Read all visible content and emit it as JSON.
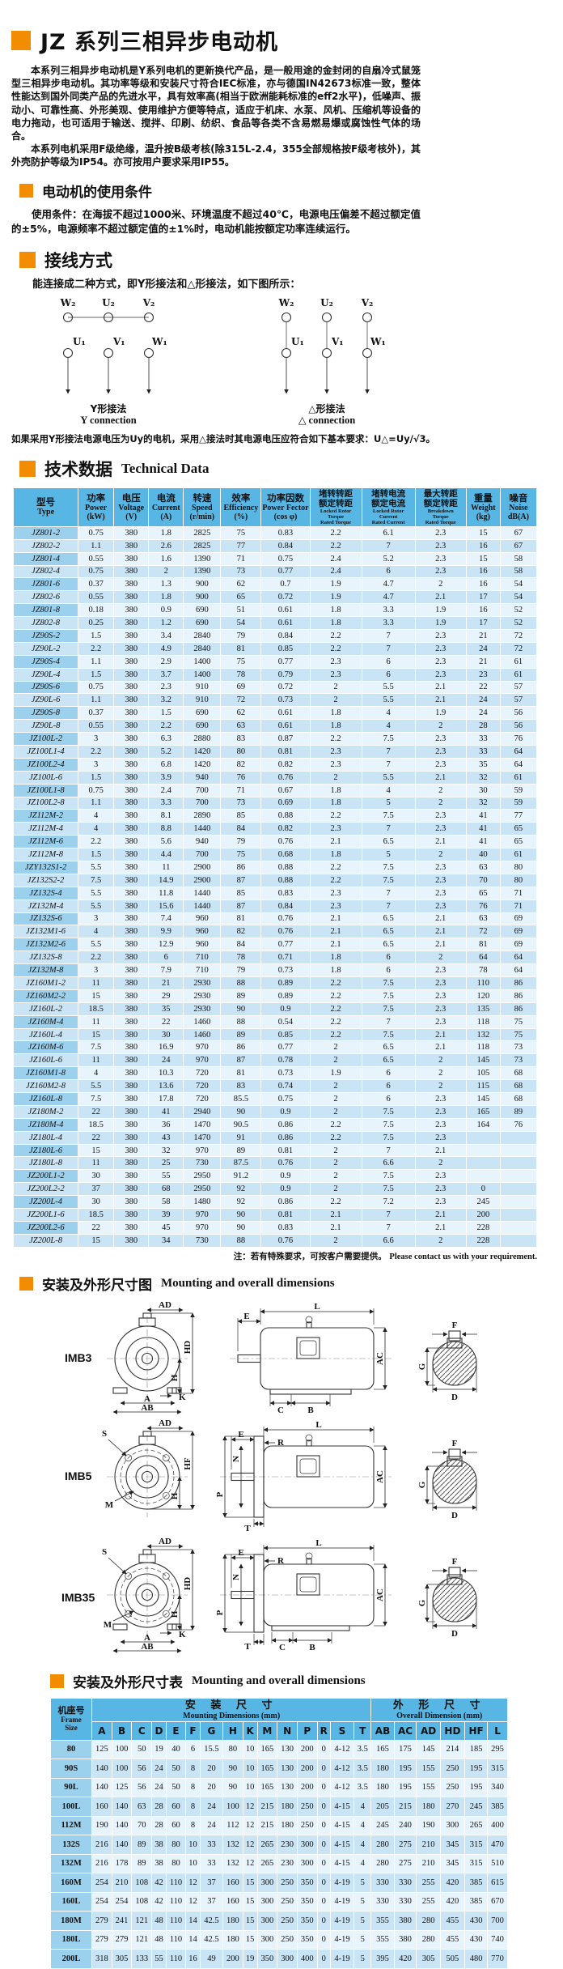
{
  "header": {
    "title": "JZ 系列三相异步电动机"
  },
  "intro": {
    "p1": "本系列三相异步电动机是Y系列电机的更新换代产品，是一般用途的金封闭的自扇冷式鼠笼型三相异步电动机。其功率等级和安装尺寸符合IEC标准，亦与德国IN42673标准一致，整体性能达到国外同类产品的先进水平，具有效率高(相当于欧洲能耗标准的eff2水平)，低噪声、振动小、可靠性高、外形美观、使用维护方便等特点，适应于机床、水泵、风机、压缩机等设备的电力拖动，也可适用于输送、搅拌、印刷、纺织、食品等各类不含易燃易爆或腐蚀性气体的场合。",
    "p2": "本系列电机采用F级绝缘，温升按B级考核(除315L-2.4，355全部规格按F级考核外)，其外壳防护等级为IP54。亦可按用户要求采用IP55。"
  },
  "usage": {
    "heading": "电动机的使用条件",
    "body": "使用条件：在海拔不超过1000米、环境温度不超过40℃，电源电压偏差不超过额定值的±5%，电源频率不超过额定值的±1%时，电动机能按额定功率连续运行。"
  },
  "wiring": {
    "heading": "接线方式",
    "lead": "能连接成二种方式，即Y形接法和△形接法，如下图所示：",
    "terminals_top": [
      "W₂",
      "U₂",
      "V₂"
    ],
    "terminals_bottom": [
      "U₁",
      "V₁",
      "W₁"
    ],
    "y_caption_cn": "Y形接法",
    "y_caption_en": "Y connection",
    "delta_caption_cn": "△形接法",
    "delta_caption_en": "△ connection",
    "note": "如果采用Y形接法电源电压为Uy的电机，采用△接法时其电源电压应符合如下基本要求：U△=Uy/√3。"
  },
  "tech": {
    "heading_cn": "技术数据",
    "heading_en": "Technical Data",
    "note_cn": "注：若有特殊要求，可按客户需要提供。",
    "note_en": "Please contact us with your requirement."
  },
  "tech_table": {
    "headers": {
      "type_cn": "型号",
      "type_en": "Type",
      "power_cn": "功率",
      "power_en": "Power",
      "power_unit": "(kW)",
      "voltage_cn": "电压",
      "voltage_en": "Voltage",
      "voltage_unit": "(V)",
      "current_cn": "电流",
      "current_en": "Current",
      "current_unit": "(A)",
      "speed_cn": "转速",
      "speed_en": "Speed",
      "speed_unit": "(r/min)",
      "eff_cn": "效率",
      "eff_en": "Efficiency",
      "eff_unit": "(%)",
      "pf_cn": "功率因数",
      "pf_en": "Power Fector",
      "pf_unit": "(cos φ)",
      "lrt_cn1": "堵转转距",
      "lrt_cn2": "额定转距",
      "lrt_en": "Locked Rotor\nTorque\nRated Torque",
      "lrc_cn1": "堵转电流",
      "lrc_cn2": "额定电流",
      "lrc_en": "Locked Rotor\nCurrent\nRated Current",
      "bt_cn1": "最大转距",
      "bt_cn2": "额定转距",
      "bt_en": "Breakdown\nTorque\nRated Torque",
      "weight_cn": "重量",
      "weight_en": "Weight",
      "weight_unit": "(kg)",
      "noise_cn": "噪音",
      "noise_en": "Noise",
      "noise_unit": "dB(A)"
    },
    "rows": [
      [
        "JZ801-2",
        "0.75",
        "380",
        "1.8",
        "2825",
        "75",
        "0.83",
        "2.2",
        "6.1",
        "2.3",
        "15",
        "67"
      ],
      [
        "JZ802-2",
        "1.1",
        "380",
        "2.6",
        "2825",
        "77",
        "0.84",
        "2.2",
        "7",
        "2.3",
        "16",
        "67"
      ],
      [
        "JZ801-4",
        "0.55",
        "380",
        "1.6",
        "1390",
        "71",
        "0.75",
        "2.4",
        "5.2",
        "2.3",
        "15",
        "58"
      ],
      [
        "JZ802-4",
        "0.75",
        "380",
        "2",
        "1390",
        "73",
        "0.77",
        "2.4",
        "6",
        "2.3",
        "16",
        "58"
      ],
      [
        "JZ801-6",
        "0.37",
        "380",
        "1.3",
        "900",
        "62",
        "0.7",
        "1.9",
        "4.7",
        "2",
        "16",
        "54"
      ],
      [
        "JZ802-6",
        "0.55",
        "380",
        "1.8",
        "900",
        "65",
        "0.72",
        "1.9",
        "4.7",
        "2.1",
        "17",
        "54"
      ],
      [
        "JZ801-8",
        "0.18",
        "380",
        "0.9",
        "690",
        "51",
        "0.61",
        "1.8",
        "3.3",
        "1.9",
        "16",
        "52"
      ],
      [
        "JZ802-8",
        "0.25",
        "380",
        "1.2",
        "690",
        "54",
        "0.61",
        "1.8",
        "3.3",
        "1.9",
        "17",
        "52"
      ],
      [
        "JZ90S-2",
        "1.5",
        "380",
        "3.4",
        "2840",
        "79",
        "0.84",
        "2.2",
        "7",
        "2.3",
        "21",
        "72"
      ],
      [
        "JZ90L-2",
        "2.2",
        "380",
        "4.9",
        "2840",
        "81",
        "0.85",
        "2.2",
        "7",
        "2.3",
        "24",
        "72"
      ],
      [
        "JZ90S-4",
        "1.1",
        "380",
        "2.9",
        "1400",
        "75",
        "0.77",
        "2.3",
        "6",
        "2.3",
        "21",
        "61"
      ],
      [
        "JZ90L-4",
        "1.5",
        "380",
        "3.7",
        "1400",
        "78",
        "0.79",
        "2.3",
        "6",
        "2.3",
        "23",
        "61"
      ],
      [
        "JZ90S-6",
        "0.75",
        "380",
        "2.3",
        "910",
        "69",
        "0.72",
        "2",
        "5.5",
        "2.1",
        "22",
        "57"
      ],
      [
        "JZ90L-6",
        "1.1",
        "380",
        "3.2",
        "910",
        "72",
        "0.73",
        "2",
        "5.5",
        "2.1",
        "24",
        "57"
      ],
      [
        "JZ90S-8",
        "0.37",
        "380",
        "1.5",
        "690",
        "62",
        "0.61",
        "1.8",
        "4",
        "1.9",
        "24",
        "56"
      ],
      [
        "JZ90L-8",
        "0.55",
        "380",
        "2.2",
        "690",
        "63",
        "0.61",
        "1.8",
        "4",
        "2",
        "28",
        "56"
      ],
      [
        "JZ100L-2",
        "3",
        "380",
        "6.3",
        "2880",
        "83",
        "0.87",
        "2.2",
        "7.5",
        "2.3",
        "33",
        "76"
      ],
      [
        "JZ100L1-4",
        "2.2",
        "380",
        "5.2",
        "1420",
        "80",
        "0.81",
        "2.3",
        "7",
        "2.3",
        "33",
        "64"
      ],
      [
        "JZ100L2-4",
        "3",
        "380",
        "6.8",
        "1420",
        "82",
        "0.82",
        "2.3",
        "7",
        "2.3",
        "35",
        "64"
      ],
      [
        "JZ100L-6",
        "1.5",
        "380",
        "3.9",
        "940",
        "76",
        "0.76",
        "2",
        "5.5",
        "2.1",
        "32",
        "61"
      ],
      [
        "JZ100L1-8",
        "0.75",
        "380",
        "2.4",
        "700",
        "71",
        "0.67",
        "1.8",
        "4",
        "2",
        "30",
        "59"
      ],
      [
        "JZ100L2-8",
        "1.1",
        "380",
        "3.3",
        "700",
        "73",
        "0.69",
        "1.8",
        "5",
        "2",
        "32",
        "59"
      ],
      [
        "JZ112M-2",
        "4",
        "380",
        "8.1",
        "2890",
        "85",
        "0.88",
        "2.2",
        "7.5",
        "2.3",
        "41",
        "77"
      ],
      [
        "JZ112M-4",
        "4",
        "380",
        "8.8",
        "1440",
        "84",
        "0.82",
        "2.3",
        "7",
        "2.3",
        "41",
        "65"
      ],
      [
        "JZ112M-6",
        "2.2",
        "380",
        "5.6",
        "940",
        "79",
        "0.76",
        "2.1",
        "6.5",
        "2.1",
        "41",
        "65"
      ],
      [
        "JZ112M-8",
        "1.5",
        "380",
        "4.4",
        "700",
        "75",
        "0.68",
        "1.8",
        "5",
        "2",
        "40",
        "61"
      ],
      [
        "JZY132S1-2",
        "5.5",
        "380",
        "11",
        "2900",
        "86",
        "0.88",
        "2.2",
        "7.5",
        "2.3",
        "63",
        "80"
      ],
      [
        "JZ132S2-2",
        "7.5",
        "380",
        "14.9",
        "2900",
        "87",
        "0.88",
        "2.2",
        "7.5",
        "2.3",
        "70",
        "80"
      ],
      [
        "JZ132S-4",
        "5.5",
        "380",
        "11.8",
        "1440",
        "85",
        "0.83",
        "2.3",
        "7",
        "2.3",
        "65",
        "71"
      ],
      [
        "JZ132M-4",
        "5.5",
        "380",
        "15.6",
        "1440",
        "87",
        "0.84",
        "2.3",
        "7",
        "2.3",
        "76",
        "71"
      ],
      [
        "JZ132S-6",
        "3",
        "380",
        "7.4",
        "960",
        "81",
        "0.76",
        "2.1",
        "6.5",
        "2.1",
        "63",
        "69"
      ],
      [
        "JZ132M1-6",
        "4",
        "380",
        "9.9",
        "960",
        "82",
        "0.76",
        "2.1",
        "6.5",
        "2.1",
        "72",
        "69"
      ],
      [
        "JZ132M2-6",
        "5.5",
        "380",
        "12.9",
        "960",
        "84",
        "0.77",
        "2.1",
        "6.5",
        "2.1",
        "81",
        "69"
      ],
      [
        "JZ132S-8",
        "2.2",
        "380",
        "6",
        "710",
        "78",
        "0.71",
        "1.8",
        "6",
        "2",
        "64",
        "64"
      ],
      [
        "JZ132M-8",
        "3",
        "380",
        "7.9",
        "710",
        "79",
        "0.73",
        "1.8",
        "6",
        "2.3",
        "78",
        "64"
      ],
      [
        "JZ160M1-2",
        "11",
        "380",
        "21",
        "2930",
        "88",
        "0.89",
        "2.2",
        "7.5",
        "2.3",
        "110",
        "86"
      ],
      [
        "JZ160M2-2",
        "15",
        "380",
        "29",
        "2930",
        "89",
        "0.89",
        "2.2",
        "7.5",
        "2.3",
        "120",
        "86"
      ],
      [
        "JZ160L-2",
        "18.5",
        "380",
        "35",
        "2930",
        "90",
        "0.9",
        "2.2",
        "7.5",
        "2.3",
        "135",
        "86"
      ],
      [
        "JZ160M-4",
        "11",
        "380",
        "22",
        "1460",
        "88",
        "0.54",
        "2.2",
        "7",
        "2.3",
        "118",
        "75"
      ],
      [
        "JZ160L-4",
        "15",
        "380",
        "30",
        "1460",
        "89",
        "0.85",
        "2.2",
        "7.5",
        "2.1",
        "132",
        "75"
      ],
      [
        "JZ160M-6",
        "7.5",
        "380",
        "16.9",
        "970",
        "86",
        "0.77",
        "2",
        "6.5",
        "2.1",
        "118",
        "73"
      ],
      [
        "JZ160L-6",
        "11",
        "380",
        "24",
        "970",
        "87",
        "0.78",
        "2",
        "6.5",
        "2",
        "145",
        "73"
      ],
      [
        "JZ160M1-8",
        "4",
        "380",
        "10.3",
        "720",
        "81",
        "0.73",
        "1.9",
        "6",
        "2",
        "105",
        "68"
      ],
      [
        "JZ160M2-8",
        "5.5",
        "380",
        "13.6",
        "720",
        "83",
        "0.74",
        "2",
        "6",
        "2",
        "115",
        "68"
      ],
      [
        "JZ160L-8",
        "7.5",
        "380",
        "17.8",
        "720",
        "85.5",
        "0.75",
        "2",
        "6",
        "2.3",
        "145",
        "68"
      ],
      [
        "JZ180M-2",
        "22",
        "380",
        "41",
        "2940",
        "90",
        "0.9",
        "2",
        "7.5",
        "2.3",
        "165",
        "89"
      ],
      [
        "JZ180M-4",
        "18.5",
        "380",
        "36",
        "1470",
        "90.5",
        "0.86",
        "2.2",
        "7.5",
        "2.3",
        "164",
        "76"
      ],
      [
        "JZ180L-4",
        "22",
        "380",
        "43",
        "1470",
        "91",
        "0.86",
        "2.2",
        "7.5",
        "2.3",
        "",
        ""
      ],
      [
        "JZ180L-6",
        "15",
        "380",
        "32",
        "970",
        "89",
        "0.81",
        "2",
        "7",
        "2.1",
        "",
        ""
      ],
      [
        "JZ180L-8",
        "11",
        "380",
        "25",
        "730",
        "87.5",
        "0.76",
        "2",
        "6.6",
        "2",
        "",
        ""
      ],
      [
        "JZ200L1-2",
        "30",
        "380",
        "55",
        "2950",
        "91.2",
        "0.9",
        "2",
        "7.5",
        "2.3",
        "",
        ""
      ],
      [
        "JZ200L2-2",
        "37",
        "380",
        "68",
        "2950",
        "92",
        "0.9",
        "2",
        "7.5",
        "2.3",
        "0",
        ""
      ],
      [
        "JZ200L-4",
        "30",
        "380",
        "58",
        "1480",
        "92",
        "0.86",
        "2.2",
        "7.2",
        "2.3",
        "245",
        ""
      ],
      [
        "JZ200L1-6",
        "18.5",
        "380",
        "39",
        "970",
        "90",
        "0.81",
        "2.1",
        "7",
        "2.1",
        "200",
        ""
      ],
      [
        "JZ200L2-6",
        "22",
        "380",
        "45",
        "970",
        "90",
        "0.83",
        "2.1",
        "7",
        "2.1",
        "228",
        ""
      ],
      [
        "JZ200L-8",
        "15",
        "380",
        "34",
        "730",
        "88",
        "0.76",
        "2",
        "6.6",
        "2",
        "228",
        ""
      ]
    ]
  },
  "mounting_fig": {
    "heading_cn": "安装及外形尺寸图",
    "heading_en": "Mounting and overall dimensions",
    "imb3": "IMB3",
    "imb5": "IMB5",
    "imb35": "IMB35"
  },
  "diagrams": {
    "dims": {
      "A": "A",
      "AB": "AB",
      "AC": "AC",
      "AD": "AD",
      "B": "B",
      "C": "C",
      "D": "D",
      "E": "E",
      "F": "F",
      "G": "G",
      "H": "H",
      "HD": "HD",
      "HF": "HF",
      "K": "K",
      "L": "L",
      "M": "M",
      "N": "N",
      "P": "P",
      "R": "R",
      "S": "S",
      "T": "T"
    }
  },
  "dim_section": {
    "heading_cn": "安装及外形尺寸表",
    "heading_en": "Mounting and overall dimensions"
  },
  "dim_table": {
    "frame_cn": "机座号",
    "frame_en": "Frame\nSize",
    "mount_cn": "安 装 尺 寸",
    "mount_en": "Mounting Dimensions (mm)",
    "overall_cn": "外 形 尺 寸",
    "overall_en": "Overall Dimension (mm)",
    "mounting_cols": [
      "A",
      "B",
      "C",
      "D",
      "E",
      "F",
      "G",
      "H",
      "K",
      "M",
      "N",
      "P",
      "R",
      "S",
      "T"
    ],
    "overall_cols": [
      "AB",
      "AC",
      "AD",
      "HD",
      "HF",
      "L"
    ],
    "rows": [
      {
        "frame": "80",
        "values": [
          "125",
          "100",
          "50",
          "19",
          "40",
          "6",
          "15.5",
          "80",
          "10",
          "165",
          "130",
          "200",
          "0",
          "4-12",
          "3.5",
          "165",
          "175",
          "145",
          "214",
          "185",
          "295"
        ]
      },
      {
        "frame": "90S",
        "values": [
          "140",
          "100",
          "56",
          "24",
          "50",
          "8",
          "20",
          "90",
          "10",
          "165",
          "130",
          "200",
          "0",
          "4-12",
          "3.5",
          "180",
          "195",
          "155",
          "250",
          "195",
          "315"
        ]
      },
      {
        "frame": "90L",
        "values": [
          "140",
          "125",
          "56",
          "24",
          "50",
          "8",
          "20",
          "90",
          "10",
          "165",
          "130",
          "200",
          "0",
          "4-12",
          "3.5",
          "180",
          "195",
          "155",
          "250",
          "195",
          "340"
        ]
      },
      {
        "frame": "100L",
        "values": [
          "160",
          "140",
          "63",
          "28",
          "60",
          "8",
          "24",
          "100",
          "12",
          "215",
          "180",
          "250",
          "0",
          "4-15",
          "4",
          "205",
          "215",
          "180",
          "270",
          "245",
          "385"
        ]
      },
      {
        "frame": "112M",
        "values": [
          "190",
          "140",
          "70",
          "28",
          "60",
          "8",
          "24",
          "112",
          "12",
          "215",
          "180",
          "250",
          "0",
          "4-15",
          "4",
          "245",
          "240",
          "190",
          "300",
          "265",
          "400"
        ]
      },
      {
        "frame": "132S",
        "values": [
          "216",
          "140",
          "89",
          "38",
          "80",
          "10",
          "33",
          "132",
          "12",
          "265",
          "230",
          "300",
          "0",
          "4-15",
          "4",
          "280",
          "275",
          "210",
          "345",
          "315",
          "470"
        ]
      },
      {
        "frame": "132M",
        "values": [
          "216",
          "178",
          "89",
          "38",
          "80",
          "10",
          "33",
          "132",
          "12",
          "265",
          "230",
          "300",
          "0",
          "4-15",
          "4",
          "280",
          "275",
          "210",
          "345",
          "315",
          "510"
        ]
      },
      {
        "frame": "160M",
        "values": [
          "254",
          "210",
          "108",
          "42",
          "110",
          "12",
          "37",
          "160",
          "15",
          "300",
          "250",
          "350",
          "0",
          "4-19",
          "5",
          "330",
          "330",
          "255",
          "420",
          "385",
          "615"
        ]
      },
      {
        "frame": "160L",
        "values": [
          "254",
          "254",
          "108",
          "42",
          "110",
          "12",
          "37",
          "160",
          "15",
          "300",
          "250",
          "350",
          "0",
          "4-19",
          "5",
          "330",
          "330",
          "255",
          "420",
          "385",
          "670"
        ]
      },
      {
        "frame": "180M",
        "values": [
          "279",
          "241",
          "121",
          "48",
          "110",
          "14",
          "42.5",
          "180",
          "15",
          "300",
          "250",
          "350",
          "0",
          "4-19",
          "5",
          "355",
          "380",
          "280",
          "455",
          "430",
          "700"
        ]
      },
      {
        "frame": "180L",
        "values": [
          "279",
          "279",
          "121",
          "48",
          "110",
          "14",
          "42.5",
          "180",
          "15",
          "300",
          "250",
          "350",
          "0",
          "4-19",
          "5",
          "355",
          "380",
          "280",
          "455",
          "430",
          "740"
        ]
      },
      {
        "frame": "200L",
        "values": [
          "318",
          "305",
          "133",
          "55",
          "110",
          "16",
          "49",
          "200",
          "19",
          "350",
          "300",
          "400",
          "0",
          "4-19",
          "5",
          "395",
          "420",
          "305",
          "505",
          "480",
          "770"
        ]
      }
    ]
  }
}
